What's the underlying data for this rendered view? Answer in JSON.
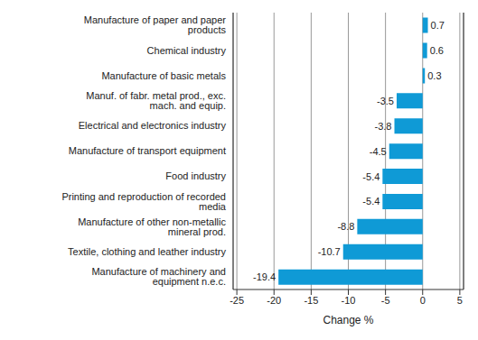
{
  "chart_data": {
    "type": "bar",
    "orientation": "horizontal",
    "categories": [
      "Manufacture of paper and paper products",
      "Chemical industry",
      "Manufacture of basic metals",
      "Manuf. of fabr. metal prod., exc. mach. and equip.",
      "Electrical and electronics industry",
      "Manufacture of transport equipment",
      "Food industry",
      "Printing and reproduction of recorded media",
      "Manufacture of other non-metallic mineral prod.",
      "Textile, clothing and leather industry",
      "Manufacture of machinery and equipment n.e.c."
    ],
    "values": [
      0.7,
      0.6,
      0.3,
      -3.5,
      -3.8,
      -4.5,
      -5.4,
      -5.4,
      -8.8,
      -10.7,
      -19.4
    ],
    "color": "#0f9ad6",
    "xlabel": "Change %",
    "xlim": [
      -25.5,
      5.5
    ],
    "xticks": [
      -25,
      -20,
      -15,
      -10,
      -5,
      0,
      5
    ],
    "grid": true,
    "data_labels": true
  }
}
